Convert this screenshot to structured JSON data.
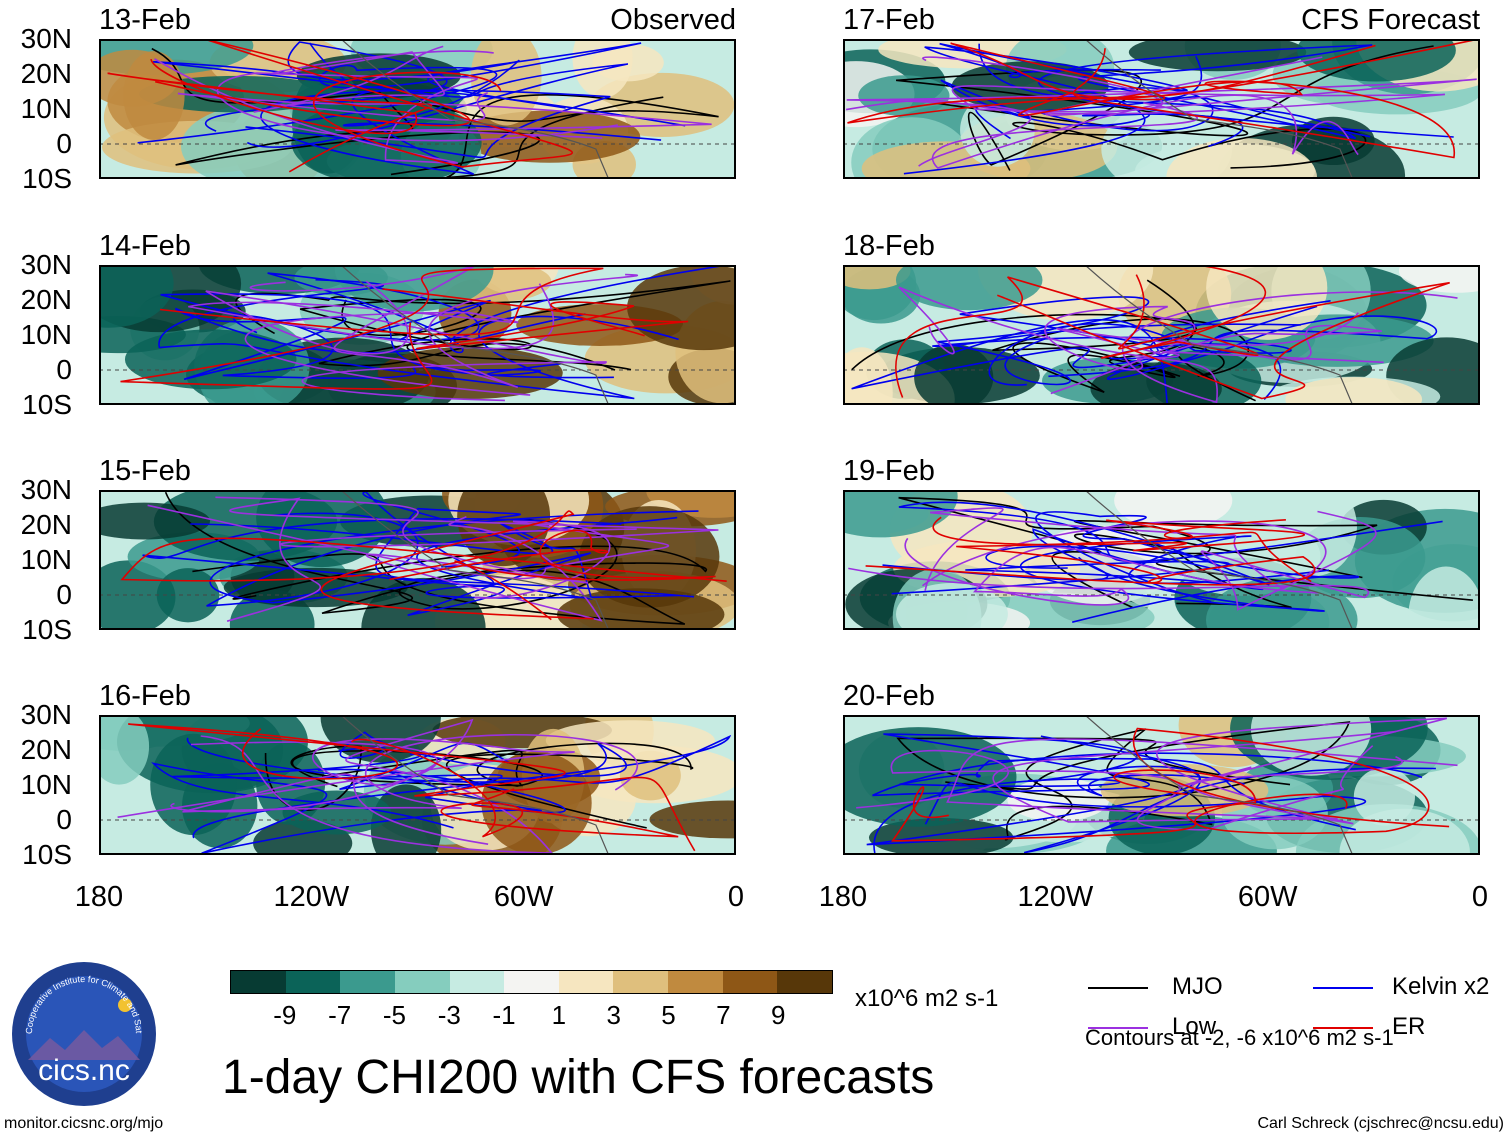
{
  "title": "1-day CHI200 with CFS forecasts",
  "units": "x10^6 m2 s-1",
  "panels_left_label": "Observed",
  "panels_right_label": "CFS Forecast",
  "panels": [
    {
      "date": "13-Feb",
      "source": "Observed"
    },
    {
      "date": "14-Feb",
      "source": ""
    },
    {
      "date": "15-Feb",
      "source": ""
    },
    {
      "date": "16-Feb",
      "source": ""
    },
    {
      "date": "17-Feb",
      "source": "CFS Forecast"
    },
    {
      "date": "18-Feb",
      "source": ""
    },
    {
      "date": "19-Feb",
      "source": ""
    },
    {
      "date": "20-Feb",
      "source": ""
    }
  ],
  "lat_labels": [
    "30N",
    "20N",
    "10N",
    "0",
    "10S"
  ],
  "lon_labels": [
    "180",
    "120W",
    "60W",
    "0"
  ],
  "colorbar": {
    "colors": [
      "#073b33",
      "#0b6358",
      "#3b9a8e",
      "#85cdbe",
      "#c6ebe2",
      "#f4f4f2",
      "#f6e6c0",
      "#dfbf7d",
      "#c08a3f",
      "#8e5716",
      "#573709"
    ],
    "labels": [
      "-9",
      "-7",
      "-5",
      "-3",
      "-1",
      "1",
      "3",
      "5",
      "7",
      "9"
    ]
  },
  "legend": {
    "mjo": {
      "label": "MJO",
      "color": "#000000"
    },
    "kelvin": {
      "label": "Kelvin x2",
      "color": "#0000ee"
    },
    "low": {
      "label": "Low",
      "color": "#9b30e0"
    },
    "er": {
      "label": "ER",
      "color": "#e00000"
    },
    "contours": "Contours at -2, -6 x10^6 m2 s-1"
  },
  "logo_text": "cics.nc",
  "logo_ring_text": "Cooperative Institute for Climate and Satellites",
  "footer_left": "monitor.cicsnc.org/mjo",
  "footer_right": "Carl Schreck (cjschrec@ncsu.edu)"
}
